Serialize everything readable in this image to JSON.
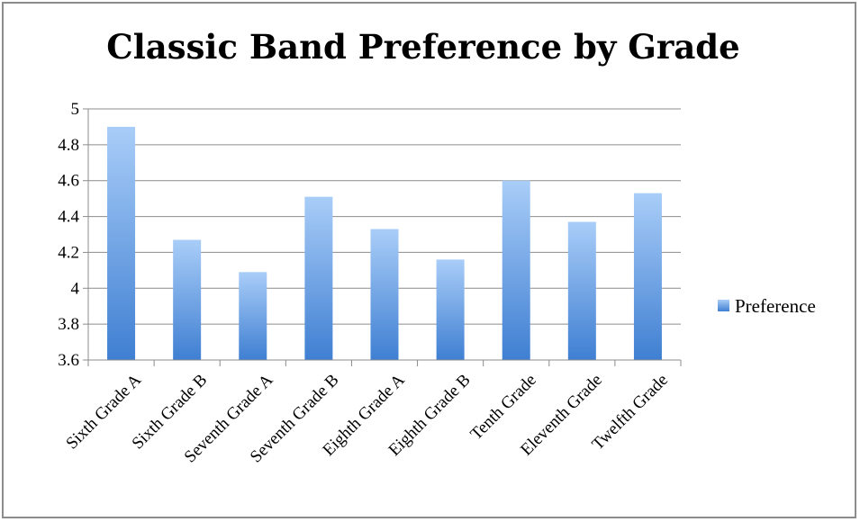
{
  "chart_data": {
    "type": "bar",
    "title": "Classic Band Preference by Grade",
    "categories": [
      "Sixth Grade A",
      "Sixth Grade B",
      "Seventh Grade A",
      "Seventh Grade B",
      "Eighth Grade A",
      "Eighth Grade B",
      "Tenth Grade",
      "Eleventh Grade",
      "Twelfth Grade"
    ],
    "series": [
      {
        "name": "Preference",
        "values": [
          4.9,
          4.27,
          4.09,
          4.51,
          4.33,
          4.16,
          4.6,
          4.37,
          4.53
        ]
      }
    ],
    "ylim": [
      3.6,
      5.0
    ],
    "yticks": [
      "3.6",
      "3.8",
      "4",
      "4.2",
      "4.4",
      "4.6",
      "4.8",
      "5"
    ],
    "xlabel": "",
    "ylabel": "",
    "grid": true,
    "legend_position": "right",
    "colors": {
      "bar_top": "#a9cdf8",
      "bar_bottom": "#3f7fd2",
      "grid": "#8c8c8c"
    }
  }
}
